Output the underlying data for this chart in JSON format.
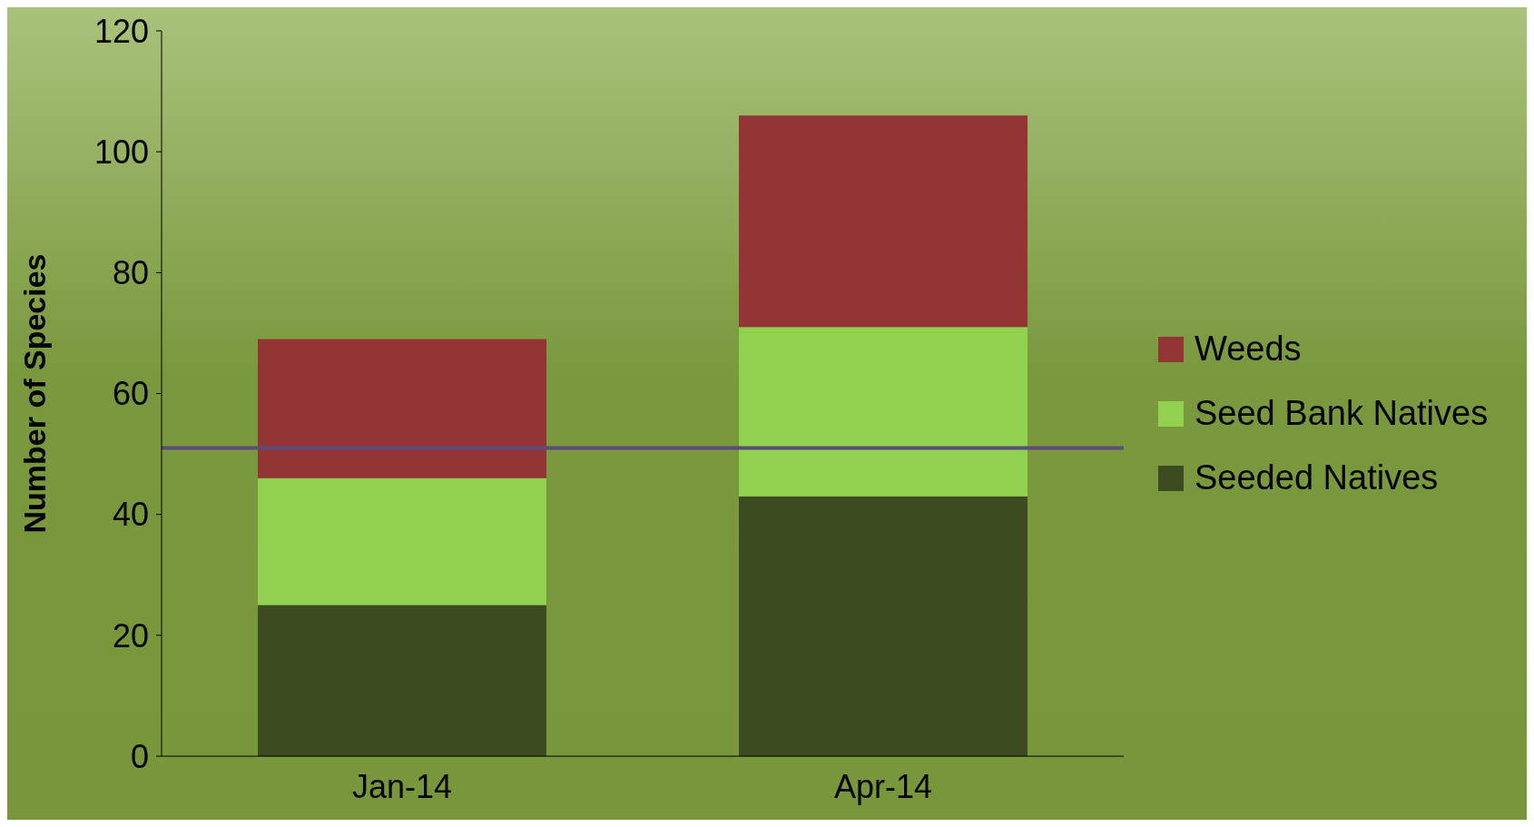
{
  "chart_data": {
    "type": "bar",
    "stacked": true,
    "ylabel": "Number of Species",
    "categories": [
      "Jan-14",
      "Apr-14"
    ],
    "series": [
      {
        "name": "Seeded Natives",
        "color": "#3c4b20",
        "values": [
          25,
          43
        ]
      },
      {
        "name": "Seed Bank Natives",
        "color": "#92d050",
        "values": [
          21,
          28
        ]
      },
      {
        "name": "Weeds",
        "color": "#943535",
        "values": [
          23,
          35
        ]
      }
    ],
    "ylim": [
      0,
      120
    ],
    "yticks": [
      0,
      20,
      40,
      60,
      80,
      100,
      120
    ],
    "grid": false,
    "legend": "right",
    "ref_lines": [
      {
        "axis": "y",
        "value": 51,
        "color": "#5b4a7a"
      }
    ]
  }
}
